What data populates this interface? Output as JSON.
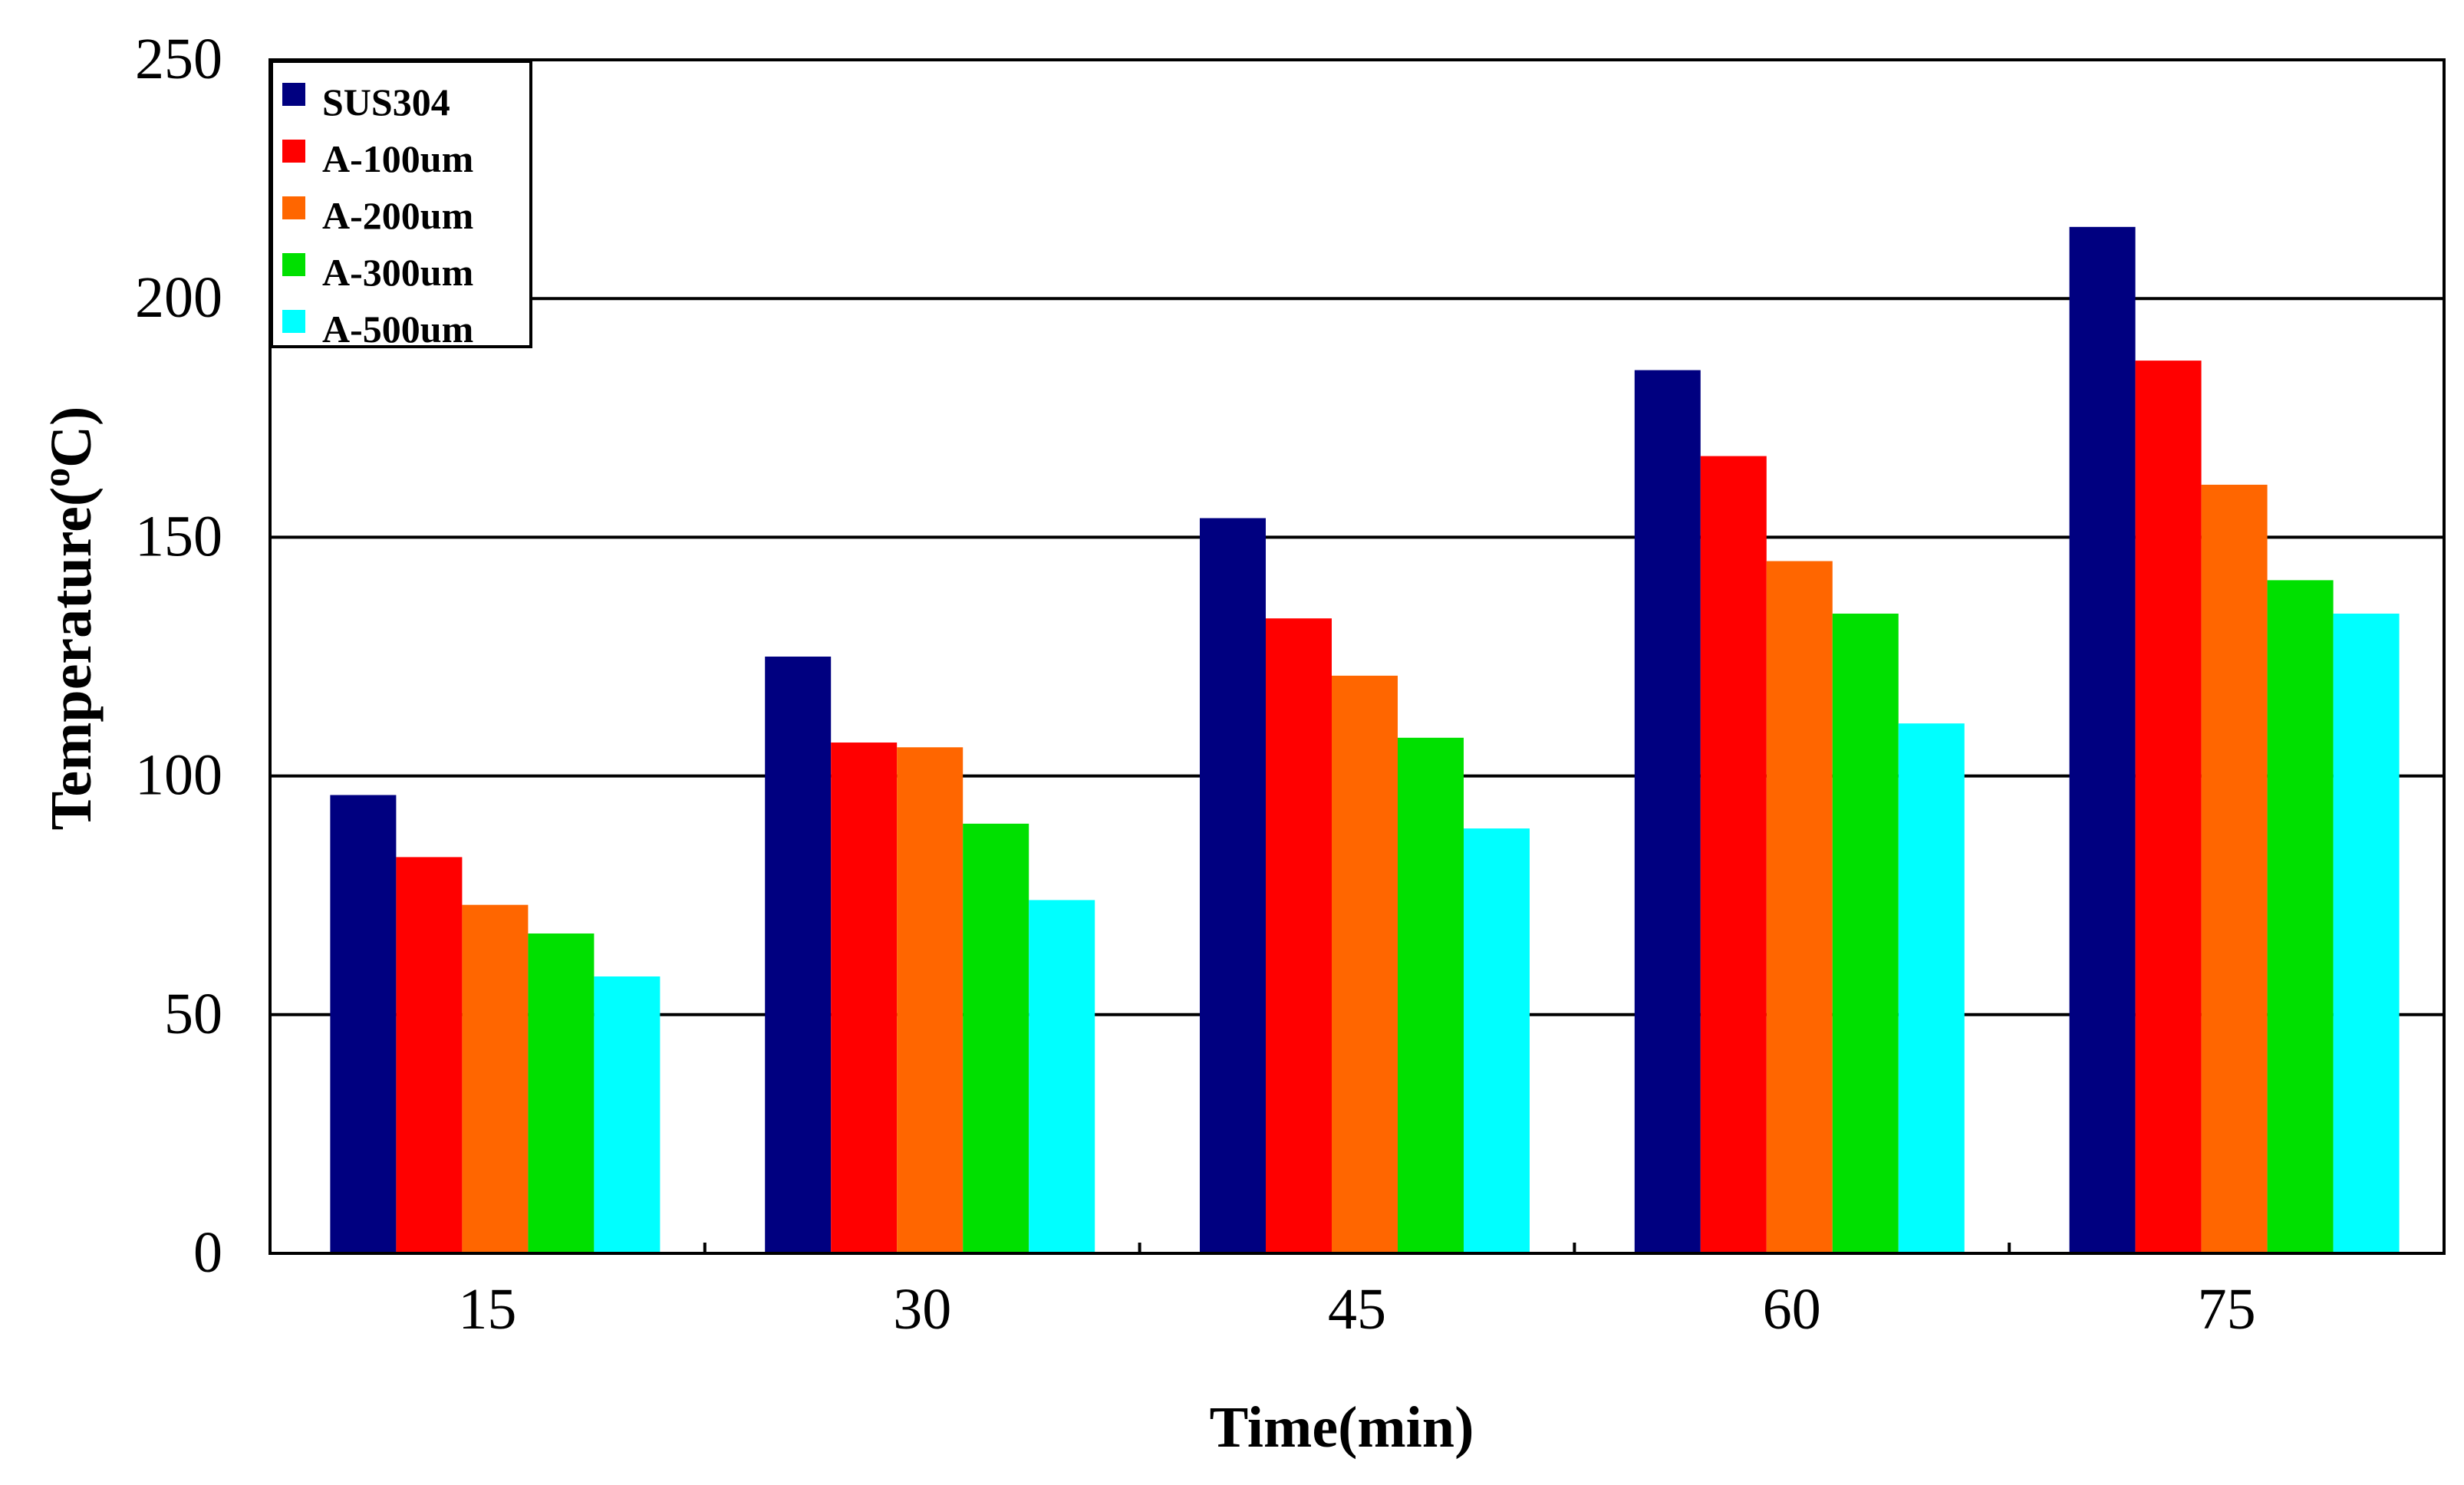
{
  "chart_data": {
    "type": "bar",
    "title": "",
    "xlabel": "Time(min)",
    "ylabel_main": "Temperature(",
    "ylabel_sup": "o",
    "ylabel_unit": "C)",
    "categories": [
      "15",
      "30",
      "45",
      "60",
      "75"
    ],
    "ylim": [
      0,
      250
    ],
    "yticks": [
      0,
      50,
      100,
      150,
      200,
      250
    ],
    "grid": true,
    "legend_position": "top-left",
    "series": [
      {
        "name": "SUS304",
        "color": "#000080",
        "values": [
          96,
          125,
          154,
          185,
          215
        ]
      },
      {
        "name": "A-100um",
        "color": "#FF0000",
        "values": [
          83,
          107,
          133,
          167,
          187
        ]
      },
      {
        "name": "A-200um",
        "color": "#FF6600",
        "values": [
          73,
          106,
          121,
          145,
          161
        ]
      },
      {
        "name": "A-300um",
        "color": "#00E000",
        "values": [
          67,
          90,
          108,
          134,
          141
        ]
      },
      {
        "name": "A-500um",
        "color": "#00FFFF",
        "values": [
          58,
          74,
          89,
          111,
          134
        ]
      }
    ]
  }
}
